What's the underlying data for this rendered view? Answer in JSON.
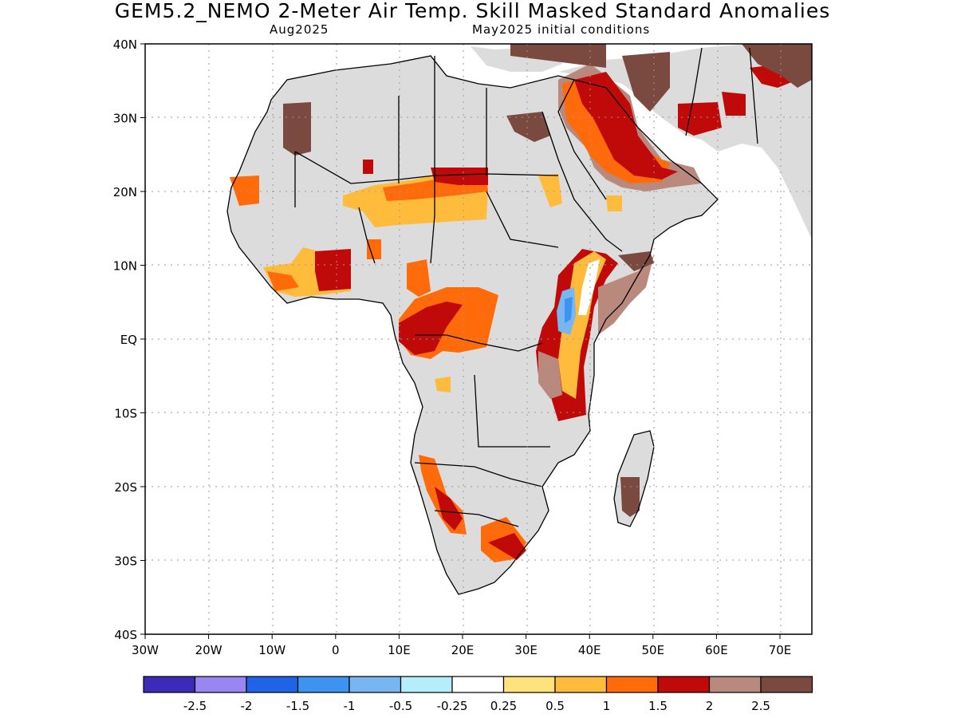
{
  "title": "GEM5.2_NEMO 2-Meter Air Temp. Skill Masked Standard Anomalies",
  "subtitle_left": "Aug2025",
  "subtitle_right": "May2025 initial conditions",
  "lat_labels": [
    "40N",
    "30N",
    "20N",
    "10N",
    "EQ",
    "10S",
    "20S",
    "30S",
    "40S"
  ],
  "lon_labels": [
    "30W",
    "20W",
    "10W",
    "0",
    "10E",
    "20E",
    "30E",
    "40E",
    "50E",
    "60E",
    "70E"
  ],
  "colorbar": {
    "colors": [
      "#3b2bb8",
      "#9a86f0",
      "#1f64e6",
      "#3c93f0",
      "#78b6f2",
      "#b4eefa",
      "#ffffff",
      "#ffe27a",
      "#ffbb3c",
      "#ff6a0a",
      "#c00a0a",
      "#b8897c",
      "#7a4a40"
    ],
    "labels": [
      "-2.5",
      "-2",
      "-1.5",
      "-1",
      "-0.5",
      "-0.25",
      "0.25",
      "0.5",
      "1",
      "1.5",
      "2",
      "2.5"
    ]
  },
  "colors": {
    "land_masked": "#dcdcdc",
    "coast": "#000000"
  }
}
